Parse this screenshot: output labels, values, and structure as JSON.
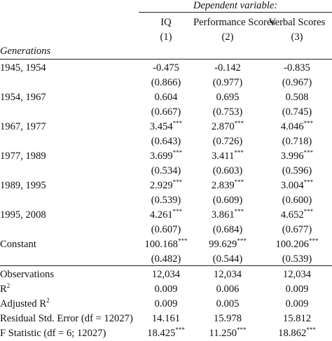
{
  "header": {
    "dep_var": "Dependent variable:",
    "columns": [
      {
        "name": "IQ",
        "num": "(1)"
      },
      {
        "name": "Performance Scores",
        "num": "(2)"
      },
      {
        "name": "Verbal Scores",
        "num": "(3)"
      }
    ],
    "group_label": "Generations"
  },
  "rows": [
    {
      "label": "1945, 1954",
      "coef": [
        "-0.475",
        "-0.142",
        "-0.835"
      ],
      "stars": [
        "",
        "",
        ""
      ],
      "se": [
        "(0.866)",
        "(0.977)",
        "(0.967)"
      ]
    },
    {
      "label": "1954, 1967",
      "coef": [
        "0.604",
        "0.695",
        "0.508"
      ],
      "stars": [
        "",
        "",
        ""
      ],
      "se": [
        "(0.667)",
        "(0.753)",
        "(0.745)"
      ]
    },
    {
      "label": "1967, 1977",
      "coef": [
        "3.454",
        "2.870",
        "4.046"
      ],
      "stars": [
        "***",
        "***",
        "***"
      ],
      "se": [
        "(0.643)",
        "(0.726)",
        "(0.718)"
      ]
    },
    {
      "label": "1977, 1989",
      "coef": [
        "3.699",
        "3.411",
        "3.996"
      ],
      "stars": [
        "***",
        "***",
        "***"
      ],
      "se": [
        "(0.534)",
        "(0.603)",
        "(0.596)"
      ]
    },
    {
      "label": "1989, 1995",
      "coef": [
        "2.929",
        "2.839",
        "3.004"
      ],
      "stars": [
        "***",
        "***",
        "***"
      ],
      "se": [
        "(0.539)",
        "(0.609)",
        "(0.600)"
      ]
    },
    {
      "label": "1995, 2008",
      "coef": [
        "4.261",
        "3.861",
        "4.652"
      ],
      "stars": [
        "***",
        "***",
        "***"
      ],
      "se": [
        "(0.607)",
        "(0.684)",
        "(0.677)"
      ]
    },
    {
      "label": "Constant",
      "coef": [
        "100.168",
        "99.629",
        "100.206"
      ],
      "stars": [
        "***",
        "***",
        "***"
      ],
      "se": [
        "(0.482)",
        "(0.544)",
        "(0.539)"
      ]
    }
  ],
  "stats": [
    {
      "label": "Observations",
      "sup": "",
      "values": [
        "12,034",
        "12,034",
        "12,034"
      ],
      "stars": [
        "",
        "",
        ""
      ]
    },
    {
      "label": "R",
      "sup": "2",
      "values": [
        "0.009",
        "0.006",
        "0.009"
      ],
      "stars": [
        "",
        "",
        ""
      ]
    },
    {
      "label": "Adjusted R",
      "sup": "2",
      "values": [
        "0.009",
        "0.005",
        "0.009"
      ],
      "stars": [
        "",
        "",
        ""
      ]
    },
    {
      "label": "Residual Std. Error (df = 12027)",
      "sup": "",
      "values": [
        "14.161",
        "15.978",
        "15.812"
      ],
      "stars": [
        "",
        "",
        ""
      ]
    },
    {
      "label": "F Statistic (df = 6; 12027)",
      "sup": "",
      "values": [
        "18.425",
        "11.250",
        "18.862"
      ],
      "stars": [
        "***",
        "***",
        "***"
      ]
    }
  ]
}
